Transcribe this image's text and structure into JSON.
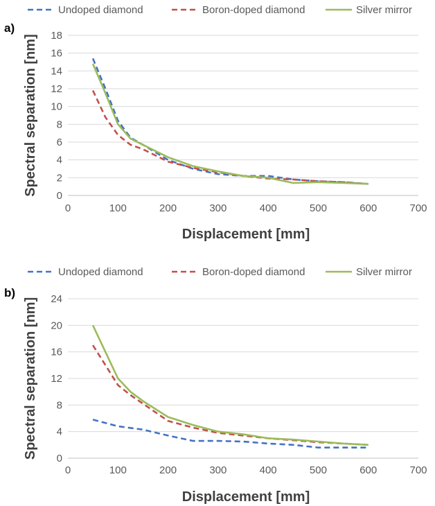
{
  "chart_data": [
    {
      "type": "line",
      "panel_label": "a)",
      "xlabel": "Displacement [mm]",
      "ylabel": "Spectral separation [nm]",
      "xlim": [
        0,
        700
      ],
      "ylim": [
        0,
        18
      ],
      "xticks": [
        0,
        100,
        200,
        300,
        400,
        500,
        600,
        700
      ],
      "yticks": [
        0,
        2,
        4,
        6,
        8,
        10,
        12,
        14,
        16,
        18
      ],
      "grid": "horizontal",
      "legend_position": "top",
      "series": [
        {
          "name": "Undoped diamond",
          "color": "#4472C4",
          "dash": "dashed",
          "x": [
            50,
            75,
            100,
            125,
            150,
            200,
            250,
            300,
            350,
            400,
            450,
            500,
            550,
            600
          ],
          "y": [
            15.4,
            12.0,
            8.4,
            6.5,
            5.7,
            4.0,
            3.0,
            2.4,
            2.2,
            2.2,
            1.8,
            1.6,
            1.5,
            1.3
          ]
        },
        {
          "name": "Boron-doped diamond",
          "color": "#C0504D",
          "dash": "dashed",
          "x": [
            50,
            75,
            100,
            125,
            150,
            200,
            250,
            300,
            350,
            400,
            450,
            500,
            550,
            600
          ],
          "y": [
            11.8,
            8.8,
            6.8,
            5.7,
            5.2,
            3.8,
            3.1,
            2.6,
            2.2,
            1.9,
            1.8,
            1.6,
            1.5,
            1.3
          ]
        },
        {
          "name": "Silver mirror",
          "color": "#9BBB59",
          "dash": "solid",
          "x": [
            50,
            75,
            100,
            125,
            150,
            200,
            250,
            300,
            350,
            400,
            450,
            500,
            550,
            600
          ],
          "y": [
            14.8,
            11.5,
            8.0,
            6.4,
            5.7,
            4.3,
            3.3,
            2.7,
            2.2,
            2.0,
            1.4,
            1.5,
            1.4,
            1.3
          ]
        }
      ]
    },
    {
      "type": "line",
      "panel_label": "b)",
      "xlabel": "Displacement [mm]",
      "ylabel": "Spectral separation [nm]",
      "xlim": [
        0,
        700
      ],
      "ylim": [
        0,
        24
      ],
      "xticks": [
        0,
        100,
        200,
        300,
        400,
        500,
        600,
        700
      ],
      "yticks": [
        0,
        4,
        8,
        12,
        16,
        20,
        24
      ],
      "grid": "horizontal",
      "legend_position": "top",
      "series": [
        {
          "name": "Undoped diamond",
          "color": "#4472C4",
          "dash": "dashed",
          "x": [
            50,
            100,
            150,
            200,
            250,
            300,
            350,
            400,
            450,
            500,
            550,
            600
          ],
          "y": [
            5.8,
            4.8,
            4.3,
            3.4,
            2.6,
            2.6,
            2.5,
            2.2,
            2.0,
            1.6,
            1.6,
            1.6
          ]
        },
        {
          "name": "Boron-doped diamond",
          "color": "#C0504D",
          "dash": "dashed",
          "x": [
            50,
            75,
            100,
            125,
            150,
            200,
            250,
            300,
            350,
            400,
            450,
            500,
            550,
            600
          ],
          "y": [
            17.0,
            14.0,
            11.0,
            9.5,
            8.2,
            5.6,
            4.6,
            3.8,
            3.4,
            3.0,
            2.7,
            2.4,
            2.2,
            2.0
          ]
        },
        {
          "name": "Silver mirror",
          "color": "#9BBB59",
          "dash": "solid",
          "x": [
            50,
            75,
            100,
            125,
            150,
            200,
            250,
            300,
            350,
            400,
            450,
            500,
            550,
            600
          ],
          "y": [
            20.0,
            16.0,
            12.0,
            10.0,
            8.6,
            6.2,
            5.0,
            4.0,
            3.6,
            3.0,
            2.8,
            2.5,
            2.2,
            2.0
          ]
        }
      ]
    }
  ]
}
